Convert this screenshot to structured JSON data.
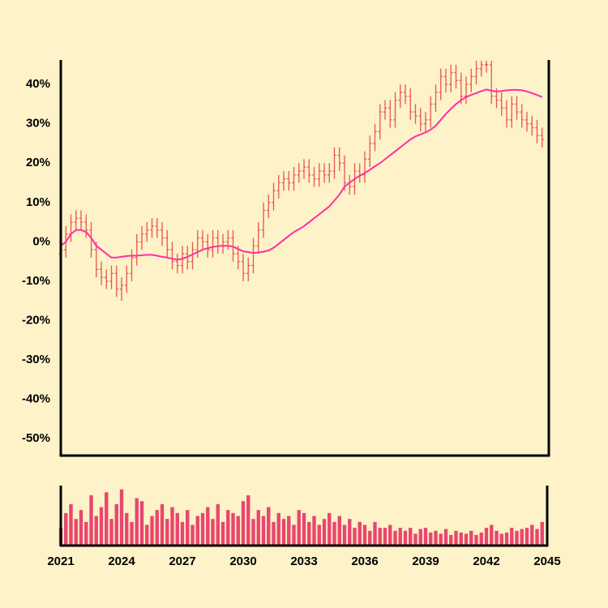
{
  "chart_data": [
    {
      "type": "ohlc",
      "x": [
        2021,
        2021.25,
        2021.5,
        2021.75,
        2022,
        2022.25,
        2022.5,
        2022.75,
        2023,
        2023.25,
        2023.5,
        2023.75,
        2024,
        2024.25,
        2024.5,
        2024.75,
        2025,
        2025.25,
        2025.5,
        2025.75,
        2026,
        2026.25,
        2026.5,
        2026.75,
        2027,
        2027.25,
        2027.5,
        2027.75,
        2028,
        2028.25,
        2028.5,
        2028.75,
        2029,
        2029.25,
        2029.5,
        2029.75,
        2030,
        2030.25,
        2030.5,
        2030.75,
        2031,
        2031.25,
        2031.5,
        2031.75,
        2032,
        2032.25,
        2032.5,
        2032.75,
        2033,
        2033.25,
        2033.5,
        2033.75,
        2034,
        2034.25,
        2034.5,
        2034.75,
        2035,
        2035.25,
        2035.5,
        2035.75,
        2036,
        2036.25,
        2036.5,
        2036.75,
        2037,
        2037.25,
        2037.5,
        2037.75,
        2038,
        2038.25,
        2038.5,
        2038.75,
        2039,
        2039.25,
        2039.5,
        2039.75,
        2040,
        2040.25,
        2040.5,
        2040.75,
        2041,
        2041.25,
        2041.5,
        2041.75,
        2042,
        2042.25,
        2042.5,
        2042.75,
        2043,
        2043.25,
        2043.5,
        2043.75,
        2044,
        2044.25,
        2044.5,
        2044.75
      ],
      "open": [
        -3,
        -2,
        2,
        5,
        6,
        5,
        3,
        -2,
        -7,
        -9,
        -10,
        -8,
        -12,
        -11,
        -8,
        -4,
        0,
        2,
        3,
        4,
        3,
        1,
        -2,
        -5,
        -6,
        -3,
        -5,
        -2,
        1,
        0,
        -2,
        1,
        -1,
        0,
        1,
        -3,
        -5,
        -8,
        -6,
        -1,
        3,
        8,
        10,
        13,
        15,
        16,
        15,
        17,
        18,
        19,
        17,
        16,
        18,
        17,
        18,
        22,
        20,
        15,
        14,
        18,
        17,
        21,
        25,
        28,
        33,
        34,
        31,
        36,
        38,
        37,
        33,
        32,
        30,
        31,
        35,
        38,
        42,
        40,
        43,
        41,
        37,
        40,
        42,
        44,
        45,
        45,
        37,
        36,
        34,
        31,
        35,
        33,
        31,
        30,
        29,
        27
      ],
      "high": [
        0,
        4,
        7,
        8,
        8,
        7,
        5,
        0,
        -5,
        -7,
        -6,
        -6,
        -9,
        -6,
        -2,
        2,
        4,
        5,
        6,
        6,
        5,
        3,
        0,
        -3,
        -1,
        -1,
        0,
        3,
        3,
        2,
        3,
        3,
        2,
        3,
        3,
        -1,
        -3,
        -4,
        1,
        5,
        10,
        12,
        15,
        17,
        18,
        18,
        19,
        20,
        21,
        21,
        19,
        20,
        20,
        20,
        24,
        24,
        22,
        17,
        20,
        20,
        23,
        27,
        30,
        35,
        36,
        36,
        38,
        40,
        40,
        39,
        35,
        34,
        33,
        37,
        40,
        44,
        44,
        45,
        45,
        43,
        42,
        44,
        46,
        46,
        46,
        46,
        39,
        38,
        36,
        37,
        37,
        35,
        33,
        32,
        31,
        29
      ],
      "low": [
        -5,
        -4,
        0,
        3,
        3,
        1,
        -4,
        -9,
        -11,
        -12,
        -12,
        -14,
        -15,
        -13,
        -10,
        -6,
        -2,
        0,
        1,
        1,
        -1,
        -4,
        -7,
        -8,
        -8,
        -7,
        -7,
        -4,
        -2,
        -4,
        -4,
        -3,
        -3,
        -2,
        -5,
        -7,
        -10,
        -10,
        -8,
        -3,
        1,
        6,
        8,
        11,
        13,
        13,
        13,
        15,
        16,
        15,
        14,
        14,
        15,
        15,
        16,
        18,
        13,
        12,
        12,
        15,
        15,
        19,
        23,
        26,
        31,
        29,
        29,
        34,
        35,
        31,
        30,
        28,
        28,
        29,
        33,
        36,
        38,
        38,
        39,
        35,
        35,
        38,
        40,
        42,
        43,
        35,
        34,
        32,
        29,
        29,
        31,
        29,
        28,
        27,
        25,
        24
      ],
      "close": [
        -2,
        2,
        5,
        6,
        5,
        3,
        -2,
        -7,
        -9,
        -10,
        -8,
        -12,
        -11,
        -8,
        -4,
        0,
        2,
        3,
        4,
        3,
        1,
        -2,
        -5,
        -6,
        -3,
        -5,
        -2,
        1,
        0,
        -2,
        1,
        -1,
        0,
        1,
        -3,
        -5,
        -8,
        -6,
        -1,
        3,
        8,
        10,
        13,
        15,
        16,
        15,
        17,
        18,
        19,
        17,
        16,
        18,
        17,
        18,
        22,
        20,
        15,
        14,
        18,
        17,
        21,
        25,
        28,
        33,
        34,
        31,
        36,
        38,
        37,
        33,
        32,
        30,
        31,
        35,
        38,
        42,
        40,
        43,
        41,
        37,
        40,
        42,
        44,
        45,
        45,
        37,
        36,
        34,
        31,
        35,
        33,
        31,
        30,
        29,
        27,
        26
      ],
      "color": "#e8574f",
      "ma": {
        "color": "#ff2fa6",
        "values": [
          -1,
          0,
          2,
          3,
          3,
          2.5,
          1,
          -1,
          -2,
          -3,
          -4,
          -4,
          -3.8,
          -3.6,
          -3.5,
          -3.5,
          -3.4,
          -3.3,
          -3.3,
          -3.5,
          -3.8,
          -4,
          -4.3,
          -4.5,
          -4.3,
          -3.8,
          -3.2,
          -2.6,
          -2,
          -1.6,
          -1.3,
          -1.1,
          -1,
          -1,
          -1.2,
          -1.8,
          -2.4,
          -2.6,
          -2.8,
          -2.7,
          -2.5,
          -2.2,
          -1.5,
          -0.5,
          0.5,
          1.5,
          2.5,
          3.2,
          4,
          5,
          6,
          7,
          8,
          9,
          10.5,
          12,
          14,
          15,
          16,
          16.8,
          17.5,
          18.3,
          19.2,
          20,
          21,
          22,
          23,
          24,
          25,
          26,
          26.8,
          27.3,
          27.8,
          28.5,
          29.5,
          31,
          32.5,
          33.8,
          35,
          36,
          36.8,
          37.3,
          37.8,
          38.3,
          38.7,
          38.4,
          38.2,
          38.3,
          38.5,
          38.6,
          38.6,
          38.5,
          38.2,
          37.8,
          37.3,
          36.8
        ]
      },
      "xlim": [
        2021,
        2045
      ],
      "ylim": [
        -54.3,
        46
      ],
      "yticks": [
        {
          "value": 40,
          "label": "40%"
        },
        {
          "value": 30,
          "label": "30%"
        },
        {
          "value": 20,
          "label": "20%"
        },
        {
          "value": 10,
          "label": "10%"
        },
        {
          "value": 0,
          "label": "0%"
        },
        {
          "value": -10,
          "label": "-10%"
        },
        {
          "value": -20,
          "label": "-20%"
        },
        {
          "value": -30,
          "label": "-30%"
        },
        {
          "value": -40,
          "label": "-40%"
        },
        {
          "value": -50,
          "label": "-50%"
        }
      ]
    },
    {
      "type": "bar",
      "values": [
        30,
        55,
        70,
        45,
        60,
        40,
        85,
        50,
        65,
        90,
        45,
        70,
        95,
        55,
        40,
        80,
        75,
        35,
        50,
        60,
        70,
        45,
        65,
        55,
        40,
        60,
        35,
        50,
        55,
        65,
        45,
        70,
        40,
        60,
        55,
        50,
        75,
        85,
        45,
        60,
        50,
        65,
        40,
        55,
        45,
        50,
        35,
        60,
        55,
        40,
        50,
        35,
        45,
        55,
        40,
        50,
        35,
        45,
        30,
        40,
        35,
        25,
        40,
        30,
        30,
        35,
        25,
        30,
        25,
        30,
        20,
        28,
        30,
        22,
        25,
        20,
        28,
        18,
        25,
        22,
        20,
        25,
        18,
        22,
        30,
        35,
        25,
        20,
        22,
        30,
        25,
        28,
        30,
        35,
        28,
        40
      ],
      "color": "#e8466f",
      "xlim": [
        2021,
        2045
      ],
      "ylim": [
        0,
        100
      ],
      "xticks": [
        2021,
        2024,
        2027,
        2030,
        2033,
        2036,
        2039,
        2042,
        2045
      ]
    }
  ]
}
